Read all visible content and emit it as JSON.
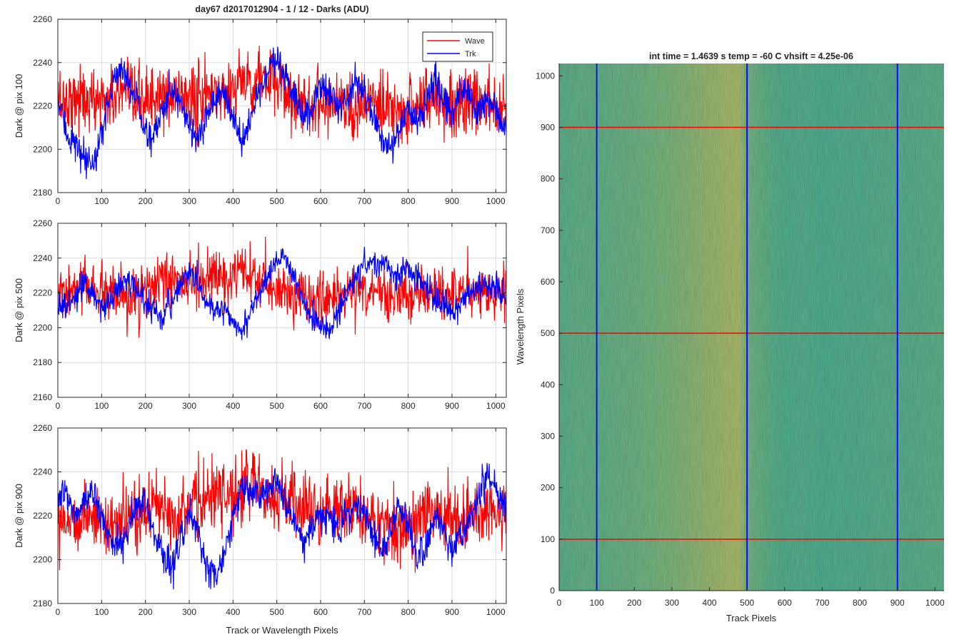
{
  "colors": {
    "wave": "#ff0000",
    "trk": "#0000ff",
    "grid": "#dcdcdc",
    "axis": "#262626",
    "heat_low": "#20a3a0",
    "heat_high": "#c6b85a"
  },
  "chart_data": [
    {
      "id": "dark-pix-100",
      "type": "line",
      "title": "day67 d2017012904 - 1 / 12 - Darks (ADU)",
      "xlabel": "",
      "ylabel": "Dark @ pix 100",
      "xlim": [
        0,
        1024
      ],
      "ylim": [
        2180,
        2260
      ],
      "xticks": [
        0,
        100,
        200,
        300,
        400,
        500,
        600,
        700,
        800,
        900,
        1000
      ],
      "yticks": [
        2180,
        2200,
        2220,
        2240,
        2260
      ],
      "grid": true,
      "legend": {
        "position": "top-right",
        "entries": [
          "Wave",
          "Trk"
        ]
      },
      "x": [
        0,
        20,
        40,
        60,
        80,
        100,
        120,
        140,
        160,
        180,
        200,
        220,
        240,
        260,
        280,
        300,
        320,
        340,
        360,
        380,
        400,
        420,
        440,
        460,
        480,
        500,
        520,
        540,
        560,
        580,
        600,
        620,
        640,
        660,
        680,
        700,
        720,
        740,
        760,
        780,
        800,
        820,
        840,
        860,
        880,
        900,
        920,
        940,
        960,
        980,
        1000,
        1020
      ],
      "series": [
        {
          "name": "Wave",
          "color": "#ff0000",
          "values": [
            2224,
            2222,
            2225,
            2223,
            2221,
            2224,
            2222,
            2226,
            2223,
            2221,
            2225,
            2222,
            2224,
            2223,
            2226,
            2224,
            2222,
            2225,
            2227,
            2226,
            2229,
            2231,
            2232,
            2233,
            2231,
            2229,
            2226,
            2224,
            2222,
            2221,
            2223,
            2222,
            2224,
            2221,
            2219,
            2220,
            2222,
            2218,
            2216,
            2217,
            2219,
            2221,
            2222,
            2224,
            2223,
            2221,
            2222,
            2220,
            2222,
            2221,
            2220,
            2223
          ]
        },
        {
          "name": "Trk",
          "color": "#0000ff",
          "values": [
            2222,
            2208,
            2202,
            2194,
            2192,
            2208,
            2226,
            2238,
            2233,
            2222,
            2208,
            2206,
            2218,
            2229,
            2223,
            2212,
            2204,
            2213,
            2223,
            2226,
            2215,
            2204,
            2213,
            2228,
            2236,
            2240,
            2233,
            2224,
            2214,
            2221,
            2230,
            2227,
            2219,
            2223,
            2232,
            2227,
            2215,
            2205,
            2200,
            2210,
            2218,
            2213,
            2222,
            2232,
            2224,
            2216,
            2227,
            2224,
            2215,
            2223,
            2221,
            2208
          ]
        }
      ]
    },
    {
      "id": "dark-pix-500",
      "type": "line",
      "title": "",
      "xlabel": "",
      "ylabel": "Dark @ pix 500",
      "xlim": [
        0,
        1024
      ],
      "ylim": [
        2160,
        2260
      ],
      "xticks": [
        0,
        100,
        200,
        300,
        400,
        500,
        600,
        700,
        800,
        900,
        1000
      ],
      "yticks": [
        2160,
        2180,
        2200,
        2220,
        2240,
        2260
      ],
      "grid": true,
      "x": [
        0,
        20,
        40,
        60,
        80,
        100,
        120,
        140,
        160,
        180,
        200,
        220,
        240,
        260,
        280,
        300,
        320,
        340,
        360,
        380,
        400,
        420,
        440,
        460,
        480,
        500,
        520,
        540,
        560,
        580,
        600,
        620,
        640,
        660,
        680,
        700,
        720,
        740,
        760,
        780,
        800,
        820,
        840,
        860,
        880,
        900,
        920,
        940,
        960,
        980,
        1000,
        1020
      ],
      "series": [
        {
          "name": "Wave",
          "color": "#ff0000",
          "values": [
            2220,
            2218,
            2222,
            2224,
            2223,
            2220,
            2218,
            2216,
            2215,
            2218,
            2221,
            2224,
            2226,
            2227,
            2226,
            2225,
            2227,
            2228,
            2229,
            2227,
            2228,
            2230,
            2229,
            2226,
            2224,
            2223,
            2221,
            2219,
            2218,
            2217,
            2216,
            2217,
            2219,
            2220,
            2221,
            2222,
            2222,
            2220,
            2219,
            2218,
            2218,
            2219,
            2220,
            2221,
            2220,
            2219,
            2220,
            2221,
            2220,
            2219,
            2220,
            2221
          ]
        },
        {
          "name": "Trk",
          "color": "#0000ff",
          "values": [
            2214,
            2212,
            2218,
            2224,
            2218,
            2212,
            2216,
            2224,
            2228,
            2222,
            2214,
            2210,
            2206,
            2214,
            2226,
            2232,
            2226,
            2214,
            2208,
            2212,
            2204,
            2198,
            2208,
            2222,
            2232,
            2236,
            2240,
            2228,
            2216,
            2206,
            2202,
            2198,
            2208,
            2220,
            2230,
            2236,
            2238,
            2236,
            2232,
            2228,
            2234,
            2230,
            2222,
            2218,
            2214,
            2210,
            2214,
            2220,
            2224,
            2226,
            2222,
            2216
          ]
        }
      ]
    },
    {
      "id": "dark-pix-900",
      "type": "line",
      "title": "",
      "xlabel": "Track or Wavelength Pixels",
      "ylabel": "Dark @ pix 900",
      "xlim": [
        0,
        1024
      ],
      "ylim": [
        2180,
        2260
      ],
      "xticks": [
        0,
        100,
        200,
        300,
        400,
        500,
        600,
        700,
        800,
        900,
        1000
      ],
      "yticks": [
        2180,
        2200,
        2220,
        2240,
        2260
      ],
      "grid": true,
      "x": [
        0,
        20,
        40,
        60,
        80,
        100,
        120,
        140,
        160,
        180,
        200,
        220,
        240,
        260,
        280,
        300,
        320,
        340,
        360,
        380,
        400,
        420,
        440,
        460,
        480,
        500,
        520,
        540,
        560,
        580,
        600,
        620,
        640,
        660,
        680,
        700,
        720,
        740,
        760,
        780,
        800,
        820,
        840,
        860,
        880,
        900,
        920,
        940,
        960,
        980,
        1000,
        1020
      ],
      "series": [
        {
          "name": "Wave",
          "color": "#ff0000",
          "values": [
            2222,
            2219,
            2218,
            2220,
            2221,
            2217,
            2215,
            2216,
            2218,
            2220,
            2222,
            2224,
            2225,
            2223,
            2222,
            2224,
            2226,
            2227,
            2228,
            2229,
            2231,
            2233,
            2234,
            2233,
            2231,
            2228,
            2227,
            2226,
            2224,
            2222,
            2221,
            2222,
            2224,
            2225,
            2222,
            2219,
            2218,
            2217,
            2215,
            2214,
            2217,
            2219,
            2221,
            2222,
            2220,
            2218,
            2219,
            2221,
            2222,
            2220,
            2219,
            2221
          ]
        },
        {
          "name": "Trk",
          "color": "#0000ff",
          "values": [
            2226,
            2230,
            2220,
            2226,
            2232,
            2220,
            2208,
            2206,
            2214,
            2224,
            2226,
            2214,
            2202,
            2196,
            2210,
            2220,
            2212,
            2198,
            2192,
            2204,
            2220,
            2232,
            2230,
            2228,
            2232,
            2236,
            2226,
            2218,
            2208,
            2214,
            2222,
            2218,
            2214,
            2220,
            2226,
            2222,
            2212,
            2204,
            2212,
            2226,
            2216,
            2202,
            2206,
            2220,
            2214,
            2204,
            2210,
            2218,
            2228,
            2238,
            2232,
            2224
          ]
        }
      ]
    },
    {
      "id": "dark-image",
      "type": "heatmap",
      "title": "int time = 1.4639 s    temp = -60 C    vhsift = 4.25e-06",
      "xlabel": "Track Pixels",
      "ylabel": "Wavelength Pixels",
      "xlim": [
        0,
        1024
      ],
      "ylim": [
        0,
        1024
      ],
      "xticks": [
        0,
        100,
        200,
        300,
        400,
        500,
        600,
        700,
        800,
        900,
        1000
      ],
      "yticks": [
        0,
        100,
        200,
        300,
        400,
        500,
        600,
        700,
        800,
        900,
        1000
      ],
      "column_profile": {
        "track_pixel": [
          0,
          50,
          100,
          150,
          200,
          250,
          300,
          350,
          400,
          450,
          480,
          500,
          550,
          600,
          650,
          700,
          750,
          800,
          850,
          900,
          950,
          1024
        ],
        "relative_level": [
          0.35,
          0.4,
          0.38,
          0.42,
          0.45,
          0.5,
          0.55,
          0.62,
          0.7,
          0.78,
          0.8,
          0.5,
          0.36,
          0.3,
          0.32,
          0.28,
          0.3,
          0.3,
          0.33,
          0.32,
          0.34,
          0.36
        ]
      },
      "vertical_markers": {
        "color": "#0000ff",
        "track_pixels": [
          100,
          500,
          900
        ]
      },
      "horizontal_markers": {
        "color": "#ff0000",
        "wavelength_pixels": [
          100,
          500,
          900
        ]
      }
    }
  ]
}
